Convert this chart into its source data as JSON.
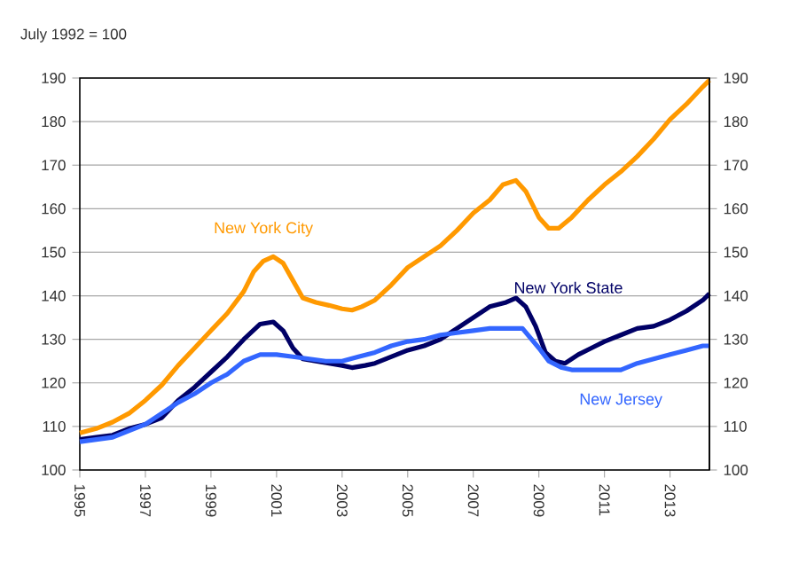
{
  "chart_data": {
    "type": "line",
    "ylabel": "July 1992 = 100",
    "xlim": [
      1995,
      2014.2
    ],
    "xticks": [
      1995,
      1997,
      1999,
      2001,
      2003,
      2005,
      2007,
      2009,
      2011,
      2013
    ],
    "ylim": [
      100,
      190
    ],
    "yticks": [
      100,
      110,
      120,
      130,
      140,
      150,
      160,
      170,
      180,
      190
    ],
    "y2lim": [
      100,
      190
    ],
    "y2ticks": [
      100,
      110,
      120,
      130,
      140,
      150,
      160,
      170,
      180,
      190
    ],
    "grid": "y",
    "legend": false,
    "line_style": "solid",
    "series": [
      {
        "name": "New York City",
        "color": "#ff9900",
        "x": [
          1995,
          1995.5,
          1996,
          1996.5,
          1997,
          1997.5,
          1998,
          1998.5,
          1999,
          1999.5,
          2000,
          2000.3,
          2000.6,
          2000.9,
          2001.2,
          2001.5,
          2001.8,
          2002.2,
          2002.6,
          2003,
          2003.3,
          2003.6,
          2004,
          2004.5,
          2005,
          2005.5,
          2006,
          2006.5,
          2007,
          2007.5,
          2007.9,
          2008.3,
          2008.6,
          2009,
          2009.3,
          2009.6,
          2010,
          2010.5,
          2011,
          2011.5,
          2012,
          2012.5,
          2013,
          2013.5,
          2014,
          2014.2
        ],
        "values": [
          108.5,
          109.5,
          111,
          113,
          116,
          119.5,
          124,
          128,
          132,
          136,
          141,
          145.5,
          148,
          149,
          147.5,
          143.5,
          139.5,
          138.5,
          137.8,
          137,
          136.7,
          137.5,
          139,
          142.5,
          146.5,
          149,
          151.5,
          155,
          159,
          162,
          165.5,
          166.5,
          164,
          158,
          155.5,
          155.5,
          158,
          162,
          165.5,
          168.5,
          172,
          176,
          180.5,
          184,
          188,
          189.5
        ]
      },
      {
        "name": "New York State",
        "color": "#000066",
        "x": [
          1995,
          1995.5,
          1996,
          1996.5,
          1997,
          1997.5,
          1998,
          1998.5,
          1999,
          1999.5,
          2000,
          2000.5,
          2000.9,
          2001.2,
          2001.5,
          2001.8,
          2002.2,
          2002.6,
          2003,
          2003.3,
          2003.7,
          2004,
          2004.5,
          2005,
          2005.5,
          2006,
          2006.5,
          2007,
          2007.5,
          2008,
          2008.3,
          2008.6,
          2008.9,
          2009.2,
          2009.5,
          2009.8,
          2010.2,
          2010.6,
          2011,
          2011.5,
          2012,
          2012.5,
          2013,
          2013.5,
          2014,
          2014.2
        ],
        "values": [
          107,
          107.5,
          108,
          109.5,
          110.5,
          112,
          116,
          119,
          122.5,
          126,
          130,
          133.5,
          134,
          132,
          128,
          125.5,
          125,
          124.5,
          124,
          123.5,
          124,
          124.5,
          126,
          127.5,
          128.5,
          130,
          132.5,
          135,
          137.5,
          138.5,
          139.5,
          137.5,
          133,
          127,
          125,
          124.5,
          126.5,
          128,
          129.5,
          131,
          132.5,
          133,
          134.5,
          136.5,
          139,
          140.5
        ]
      },
      {
        "name": "New Jersey",
        "color": "#3366ff",
        "x": [
          1995,
          1995.5,
          1996,
          1996.5,
          1997,
          1997.5,
          1998,
          1998.5,
          1999,
          1999.5,
          2000,
          2000.5,
          2001,
          2001.5,
          2002,
          2002.5,
          2003,
          2003.5,
          2004,
          2004.5,
          2005,
          2005.5,
          2006,
          2006.5,
          2007,
          2007.5,
          2008,
          2008.5,
          2009,
          2009.3,
          2009.7,
          2010,
          2010.5,
          2011,
          2011.5,
          2012,
          2012.5,
          2013,
          2013.5,
          2014,
          2014.2
        ],
        "values": [
          106.5,
          107,
          107.5,
          109,
          110.5,
          113,
          115.5,
          117.5,
          120,
          122,
          125,
          126.5,
          126.5,
          126,
          125.5,
          125,
          125,
          126,
          127,
          128.5,
          129.5,
          130,
          131,
          131.5,
          132,
          132.5,
          132.5,
          132.5,
          128,
          125,
          123.5,
          123,
          123,
          123,
          123,
          124.5,
          125.5,
          126.5,
          127.5,
          128.5,
          128.5
        ]
      }
    ]
  }
}
